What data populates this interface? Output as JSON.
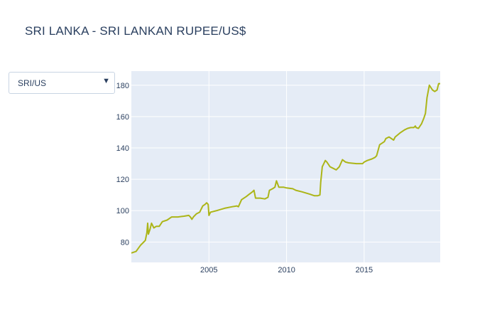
{
  "title": "SRI LANKA - SRI LANKAN RUPEE/US$",
  "dropdown": {
    "selected": "SRI/US"
  },
  "icons": {
    "dropdown_arrow": "triangle-down-icon"
  },
  "colors": {
    "line": "#acb518",
    "plot_bg": "#e5ecf6",
    "grid": "#ffffff",
    "text": "#2a3f5f"
  },
  "chart_data": {
    "type": "line",
    "title": "SRI LANKA - SRI LANKAN RUPEE/US$",
    "xlabel": "",
    "ylabel": "",
    "xlim": [
      2000.0,
      2019.9
    ],
    "ylim": [
      67,
      189
    ],
    "x_ticks": [
      2005,
      2010,
      2015
    ],
    "x_tick_labels": [
      "2005",
      "2010",
      "2015"
    ],
    "y_ticks": [
      80,
      100,
      120,
      140,
      160,
      180
    ],
    "y_tick_labels": [
      "80",
      "100",
      "120",
      "140",
      "160",
      "180"
    ],
    "grid": true,
    "series": [
      {
        "name": "",
        "x": [
          2000.0,
          2000.3,
          2000.45,
          2000.6,
          2000.7,
          2000.9,
          2001.0,
          2001.05,
          2001.1,
          2001.2,
          2001.3,
          2001.45,
          2001.6,
          2001.8,
          2002.0,
          2002.3,
          2002.6,
          2003.0,
          2003.4,
          2003.7,
          2003.8,
          2003.9,
          2004.0,
          2004.2,
          2004.4,
          2004.6,
          2004.75,
          2004.85,
          2004.95,
          2005.0,
          2005.1,
          2005.5,
          2006.0,
          2006.5,
          2006.8,
          2006.9,
          2007.1,
          2007.4,
          2007.6,
          2007.8,
          2007.9,
          2008.0,
          2008.3,
          2008.6,
          2008.8,
          2008.9,
          2009.1,
          2009.25,
          2009.35,
          2009.5,
          2009.8,
          2010.0,
          2010.4,
          2010.6,
          2011.0,
          2011.5,
          2011.8,
          2012.0,
          2012.15,
          2012.2,
          2012.3,
          2012.4,
          2012.5,
          2012.6,
          2012.8,
          2013.0,
          2013.2,
          2013.4,
          2013.6,
          2013.8,
          2014.0,
          2014.5,
          2014.9,
          2015.0,
          2015.2,
          2015.5,
          2015.7,
          2015.8,
          2016.0,
          2016.3,
          2016.4,
          2016.6,
          2016.9,
          2017.0,
          2017.3,
          2017.6,
          2017.8,
          2018.0,
          2018.2,
          2018.3,
          2018.35,
          2018.5,
          2018.7,
          2018.85,
          2018.95,
          2019.05,
          2019.2,
          2019.4,
          2019.55,
          2019.7,
          2019.8,
          2019.9
        ],
        "values": [
          73,
          74,
          76,
          78,
          79,
          81,
          86,
          92,
          85,
          88,
          92,
          89,
          90,
          90,
          93,
          94,
          96,
          96,
          96.5,
          97,
          96,
          94.5,
          96,
          98,
          99,
          103,
          104,
          105,
          104,
          97,
          99,
          100,
          101.5,
          102.5,
          103,
          102.5,
          107,
          109,
          110.5,
          112,
          113,
          108,
          108,
          107.5,
          108.5,
          113,
          114,
          115,
          119,
          115,
          115,
          114.5,
          114,
          113,
          112,
          110.5,
          109.5,
          109.5,
          110,
          118,
          128,
          130,
          132,
          131,
          128,
          127,
          126,
          128,
          132.5,
          131,
          130.5,
          130,
          130,
          131,
          132,
          133,
          134,
          135,
          142,
          144,
          146,
          147,
          145,
          147,
          149.5,
          151.5,
          152.5,
          153,
          153,
          154,
          153,
          152.5,
          155.5,
          159,
          162,
          172,
          180,
          177,
          176,
          177,
          181,
          181
        ]
      }
    ]
  }
}
